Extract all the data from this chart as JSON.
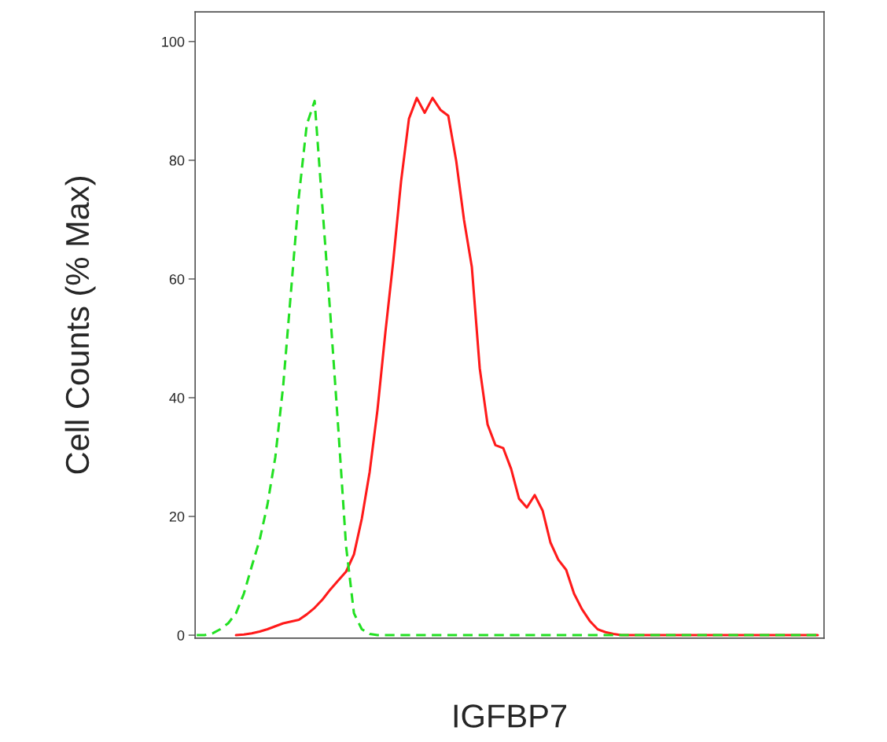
{
  "chart_data": {
    "type": "line",
    "xlabel": "IGFBP7",
    "ylabel": "Cell Counts (% Max)",
    "categories": [
      null,
      null,
      null,
      null,
      null,
      null,
      null,
      null,
      null,
      null,
      null,
      null,
      null,
      null,
      null,
      null,
      null,
      null,
      null,
      null,
      null,
      null,
      null,
      null,
      null,
      null,
      null,
      null,
      null,
      null,
      null,
      null,
      null,
      null,
      null,
      null,
      null,
      null,
      null,
      null,
      null,
      null,
      null,
      null,
      null,
      null,
      null,
      null,
      null,
      null,
      null,
      null,
      null,
      null,
      null,
      null,
      null,
      null,
      null,
      null,
      null,
      null,
      null,
      null,
      null,
      null,
      null,
      null,
      null,
      null,
      null,
      null,
      null,
      null,
      null,
      null,
      null,
      null,
      null,
      null
    ],
    "series": [
      {
        "color": "#22e022",
        "line_style": "dashed",
        "values": [
          0,
          0,
          0.3,
          1,
          2,
          3.7,
          7,
          11.6,
          16,
          22,
          30,
          42,
          58,
          74,
          86,
          90,
          72,
          54,
          35,
          15,
          3.7,
          1,
          0.2,
          0,
          0,
          0,
          0,
          0,
          0,
          0,
          0,
          0,
          0,
          0,
          0,
          0,
          0,
          0,
          0,
          0,
          0,
          0,
          0,
          0,
          0,
          0,
          0,
          0,
          0,
          0,
          0,
          0,
          0,
          0,
          0,
          0,
          0,
          0,
          0,
          0,
          0,
          0,
          0,
          0,
          0,
          0,
          0,
          0,
          0,
          0,
          0,
          0,
          0,
          0,
          0,
          0,
          0,
          0,
          0,
          0
        ]
      },
      {
        "color": "#ff1a1a",
        "line_style": "solid",
        "values": [
          null,
          null,
          null,
          null,
          null,
          0,
          0.1,
          0.3,
          0.6,
          1,
          1.5,
          2,
          2.3,
          2.6,
          3.5,
          4.6,
          6,
          7.7,
          9.2,
          10.7,
          13.6,
          19.6,
          27.5,
          38,
          51,
          63,
          76.5,
          87,
          90.5,
          88,
          90.5,
          88.5,
          87.5,
          80,
          70,
          62,
          45,
          35.5,
          32,
          31.5,
          28,
          23,
          21.5,
          23.6,
          21,
          15.6,
          12.7,
          11,
          7,
          4.4,
          2.4,
          1,
          0.5,
          0.2,
          0,
          0,
          0,
          0,
          0,
          0,
          0,
          0,
          0,
          0,
          0,
          0,
          0,
          0,
          0,
          0,
          0,
          0,
          0,
          0,
          0,
          0,
          0,
          0,
          0,
          0
        ]
      }
    ],
    "ylim": [
      -0.5,
      105
    ],
    "yticks": [
      0,
      20,
      40,
      60,
      80,
      100
    ],
    "tick_labels": "y",
    "grid": false,
    "legend": false
  }
}
